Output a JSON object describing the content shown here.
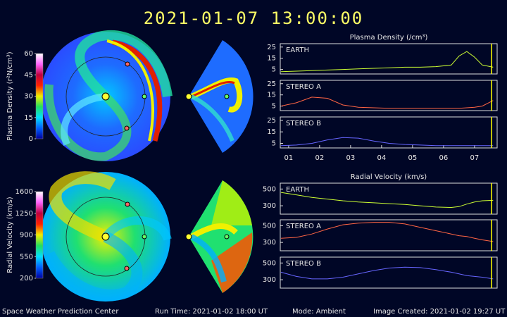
{
  "header": {
    "title": "2021-01-07  13:00:00",
    "density_title": "Plasma Density (/cm³)",
    "velocity_title": "Radial Velocity (km/s)"
  },
  "footer": {
    "center": "Space Weather Prediction Center",
    "run_time": "Run Time: 2021-01-02 18:00 UT",
    "mode": "Mode: Ambient",
    "created": "Image Created: 2021-01-02 19:27 UT"
  },
  "chart_data": [
    {
      "type": "colorbar",
      "title": "Plasma Density (r²N/cm³)",
      "ylim": [
        0,
        60
      ],
      "yticks": [
        0,
        15,
        30,
        45,
        60
      ],
      "colors": [
        "#0000a0",
        "#0060ff",
        "#00e0ff",
        "#20e060",
        "#f0f000",
        "#ff2000",
        "#c00040",
        "#ff60ff",
        "#ffffff"
      ]
    },
    {
      "type": "colorbar",
      "title": "Radial Velocity (km/s)",
      "ylim": [
        200,
        1600
      ],
      "yticks": [
        200,
        550,
        900,
        1250,
        1600
      ],
      "colors": [
        "#0000a0",
        "#0060ff",
        "#00e0ff",
        "#20e060",
        "#f0f000",
        "#ff2000",
        "#c00040",
        "#ff60ff",
        "#ffffff"
      ]
    },
    {
      "type": "line",
      "xlim": [
        0.73,
        7.73
      ],
      "ylim": [
        1,
        28
      ],
      "yticks": [
        5,
        15,
        25
      ],
      "marker_x": 7.55,
      "marker_color": "#ffff00",
      "x": [
        0.75,
        1.25,
        1.75,
        2.25,
        2.75,
        3.25,
        3.75,
        4.25,
        4.75,
        5.25,
        5.75,
        6.25,
        6.5,
        6.75,
        7.0,
        7.25,
        7.6
      ],
      "series": [
        {
          "name": "EARTH",
          "color": "#ccff33",
          "values": [
            3,
            3.5,
            4,
            4.5,
            5,
            5.5,
            6,
            6.5,
            7,
            7,
            7.5,
            9,
            17,
            21,
            16,
            9,
            7
          ]
        }
      ]
    },
    {
      "type": "line",
      "xlim": [
        0.73,
        7.73
      ],
      "ylim": [
        1,
        28
      ],
      "yticks": [
        5,
        15,
        25
      ],
      "marker_x": 7.55,
      "marker_color": "#ffff00",
      "x": [
        0.75,
        1.25,
        1.75,
        2.25,
        2.75,
        3.25,
        3.75,
        4.25,
        4.75,
        5.25,
        5.75,
        6.25,
        6.5,
        6.75,
        7.0,
        7.25,
        7.6
      ],
      "series": [
        {
          "name": "STEREO A",
          "color": "#ff6644",
          "values": [
            5,
            8,
            13,
            12,
            6,
            4,
            3.5,
            3,
            3,
            3,
            3,
            3,
            3,
            3.5,
            4,
            5,
            10
          ]
        }
      ]
    },
    {
      "type": "line",
      "xlim": [
        0.73,
        7.73
      ],
      "ylim": [
        1,
        28
      ],
      "yticks": [
        5,
        15,
        25
      ],
      "marker_x": 7.55,
      "marker_color": "#ffff00",
      "xticks": [
        {
          "value": 1,
          "label": "01"
        },
        {
          "value": 2,
          "label": "02"
        },
        {
          "value": 3,
          "label": "03"
        },
        {
          "value": 4,
          "label": "04"
        },
        {
          "value": 5,
          "label": "05"
        },
        {
          "value": 6,
          "label": "06"
        },
        {
          "value": 7,
          "label": "07"
        }
      ],
      "x": [
        0.75,
        1.25,
        1.75,
        2.25,
        2.75,
        3.25,
        3.75,
        4.25,
        4.75,
        5.25,
        5.75,
        6.25,
        6.5,
        6.75,
        7.0,
        7.25,
        7.6
      ],
      "series": [
        {
          "name": "STEREO B",
          "color": "#6666ff",
          "values": [
            3,
            3.5,
            5,
            8,
            10,
            9.5,
            7,
            5,
            4,
            3.5,
            3,
            3,
            3,
            3,
            3,
            3,
            3
          ]
        }
      ]
    },
    {
      "type": "line",
      "xlim": [
        0.73,
        7.73
      ],
      "ylim": [
        200,
        570
      ],
      "yticks": [
        300,
        500
      ],
      "marker_x": 7.55,
      "marker_color": "#ffff00",
      "x": [
        0.75,
        1.25,
        1.75,
        2.25,
        2.75,
        3.25,
        3.75,
        4.25,
        4.75,
        5.25,
        5.75,
        6.25,
        6.5,
        6.75,
        7.0,
        7.25,
        7.6
      ],
      "series": [
        {
          "name": "EARTH",
          "color": "#ccff33",
          "values": [
            460,
            430,
            400,
            380,
            360,
            345,
            335,
            325,
            315,
            300,
            285,
            280,
            290,
            320,
            345,
            360,
            365
          ]
        }
      ]
    },
    {
      "type": "line",
      "xlim": [
        0.73,
        7.73
      ],
      "ylim": [
        200,
        570
      ],
      "yticks": [
        300,
        500
      ],
      "marker_x": 7.55,
      "marker_color": "#ffff00",
      "x": [
        0.75,
        1.25,
        1.75,
        2.25,
        2.75,
        3.25,
        3.75,
        4.25,
        4.75,
        5.25,
        5.75,
        6.25,
        6.5,
        6.75,
        7.0,
        7.25,
        7.6
      ],
      "series": [
        {
          "name": "STEREO A",
          "color": "#ff6644",
          "values": [
            350,
            360,
            400,
            460,
            510,
            530,
            540,
            540,
            520,
            480,
            440,
            400,
            380,
            370,
            350,
            330,
            310
          ]
        }
      ]
    },
    {
      "type": "line",
      "xlim": [
        0.73,
        7.73
      ],
      "ylim": [
        200,
        570
      ],
      "yticks": [
        300,
        500
      ],
      "marker_x": 7.55,
      "marker_color": "#ffff00",
      "x": [
        0.75,
        1.25,
        1.75,
        2.25,
        2.75,
        3.25,
        3.75,
        4.25,
        4.75,
        5.25,
        5.75,
        6.25,
        6.5,
        6.75,
        7.0,
        7.25,
        7.6
      ],
      "series": [
        {
          "name": "STEREO B",
          "color": "#6666ff",
          "values": [
            390,
            340,
            310,
            310,
            330,
            370,
            410,
            440,
            450,
            445,
            420,
            390,
            370,
            350,
            340,
            330,
            310
          ]
        }
      ]
    }
  ]
}
